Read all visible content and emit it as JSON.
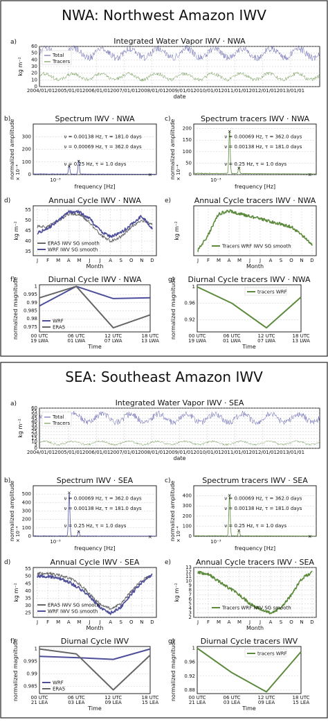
{
  "colors": {
    "total": "#5252a6",
    "tracers": "#5c8a3c",
    "era5": "#666666",
    "wrf": "#4d4d9a",
    "grid": "#bbbbbb"
  },
  "sections": [
    {
      "title": "NWA: Northwest Amazon IWV",
      "panels": {
        "a": {
          "letter": "a)",
          "title": "Integrated Water Vapor IWV · NWA",
          "ylabel": "kg m⁻²",
          "xlabel": "date",
          "yticks": [
            "0",
            "10",
            "20",
            "30",
            "40",
            "50",
            "60"
          ],
          "xticks": [
            "2004/01/01",
            "2005/01/01",
            "2006/01/01",
            "2007/01/01",
            "2008/01/01",
            "2009/01/01",
            "2010/01/01",
            "2011/01/01",
            "2012/01/01",
            "2013/01/01"
          ],
          "legend": [
            "Total",
            "Tracers"
          ]
        },
        "b": {
          "letter": "b)",
          "title": "Spectrum IWV · NWA",
          "ylabel": "normalized amplitude",
          "xlabel": "frequency [Hz]",
          "yticks": [
            "0",
            "100",
            "200",
            "300"
          ],
          "yexp": "× 10⁻⁴",
          "xticks": [
            "10⁻³"
          ],
          "annotations": [
            "ν = 0.00138 Hz, τ = 181.0 days",
            "ν = 0.00069 Hz, τ = 362.0 days",
            "ν = 0.25 Hz, τ = 1.0 days"
          ]
        },
        "c": {
          "letter": "c)",
          "title": "Spectrum tracers IWV · NWA",
          "ylabel": "normalized amplitude",
          "xlabel": "frequency [Hz]",
          "yticks": [
            "0",
            "50",
            "100",
            "150",
            "200"
          ],
          "yexp": "× 10⁻⁴",
          "xticks": [
            "10⁻³"
          ],
          "annotations": [
            "ν = 0.00069 Hz, τ = 362.0 days",
            "ν = 0.00138 Hz, τ = 181.0 days",
            "ν = 0.25 Hz, τ = 1.0 days"
          ]
        },
        "d": {
          "letter": "d)",
          "title": "Annual Cycle IWV · NWA",
          "ylabel": "kg m⁻²",
          "xlabel": "Month",
          "yticks": [
            "35",
            "40",
            "45",
            "50",
            "55"
          ],
          "months": [
            "J",
            "F",
            "M",
            "A",
            "M",
            "J",
            "J",
            "A",
            "S",
            "O",
            "N",
            "D"
          ],
          "legend": [
            "ERA5 IWV SG smooth",
            "WRF IWV SG smooth"
          ]
        },
        "e": {
          "letter": "e)",
          "title": "Annual Cycle tracers IWV · NWA",
          "ylabel": "kg m⁻²",
          "xlabel": "Month",
          "yticks": [],
          "months": [
            "J",
            "F",
            "M",
            "A",
            "M",
            "J",
            "J",
            "A",
            "S",
            "O",
            "N",
            "D"
          ],
          "legend": [
            "Tracers WRF IWV SG smooth"
          ]
        },
        "f": {
          "letter": "f)",
          "title": "Diurnal Cycle IWV · NWA",
          "ylabel": "normalized magnitude",
          "xlabel": "Time",
          "yticks": [
            "0.975",
            "0.98",
            "0.985",
            "0.99",
            "0.995",
            "1"
          ],
          "xticks": [
            [
              "00 UTC",
              "19 LWA"
            ],
            [
              "06 UTC",
              "01 LWA"
            ],
            [
              "12 UTC",
              "07 LWA"
            ],
            [
              "18 UTC",
              "13 LWA"
            ]
          ],
          "legend": [
            "WRF",
            "ERA5"
          ]
        },
        "g": {
          "letter": "g)",
          "title": "Diurnal Cycle tracers IWV · NWA",
          "ylabel": "normalized magnitude",
          "xlabel": "Time",
          "yticks": [
            "0.92",
            "0.96",
            "1"
          ],
          "xticks": [
            [
              "00 UTC",
              "19 LWA"
            ],
            [
              "06 UTC",
              "01 LWA"
            ],
            [
              "12 UTC",
              "07 LWA"
            ],
            [
              "18 UTC",
              "13 LWA"
            ]
          ],
          "legend": [
            "tracers WRF"
          ]
        }
      }
    },
    {
      "title": "SEA: Southeast Amazon IWV",
      "panels": {
        "a": {
          "letter": "a)",
          "title": "Integrated Water Vapor IWV · SEA",
          "ylabel": "kg m⁻²",
          "xlabel": "date",
          "yticks": [
            "0",
            "5",
            "10",
            "15",
            "20",
            "25",
            "30",
            "35",
            "40",
            "45",
            "50",
            "55",
            "60"
          ],
          "xticks": [
            "2004/01/01",
            "2005/01/01",
            "2006/01/01",
            "2007/01/01",
            "2008/01/01",
            "2009/01/01",
            "2010/01/01",
            "2011/01/01",
            "2012/01/01",
            "2013/01/01"
          ],
          "legend": [
            "Total",
            "Tracers"
          ]
        },
        "b": {
          "letter": "b)",
          "title": "Spectrum IWV · SEA",
          "ylabel": "normalized amplitude",
          "xlabel": "frequency [Hz]",
          "yticks": [
            "0",
            "100",
            "200",
            "300",
            "400",
            "500"
          ],
          "yexp": "× 10⁻⁴",
          "xticks": [
            "10⁻³"
          ],
          "annotations": [
            "ν = 0.00069 Hz, τ = 362.0 days",
            "ν = 0.00138 Hz, τ = 181.0 days",
            "ν = 0.25 Hz, τ = 1.0 days"
          ]
        },
        "c": {
          "letter": "c)",
          "title": "Spectrum tracers IWV · SEA",
          "ylabel": "normalized amplitude",
          "xlabel": "frequency [Hz]",
          "yticks": [
            "0",
            "100",
            "200",
            "300",
            "400"
          ],
          "yexp": "× 10⁻⁴",
          "xticks": [
            "10⁻³"
          ],
          "annotations": [
            "ν = 0.00069 Hz, τ = 362.0 days",
            "ν = 0.00138 Hz, τ = 181.0 days",
            "ν = 0.25 Hz, τ = 1.0 days"
          ]
        },
        "d": {
          "letter": "d)",
          "title": "Annual Cycle IWV · SEA",
          "ylabel": "kg m⁻²",
          "xlabel": "Month",
          "yticks": [
            "25",
            "30",
            "35",
            "40",
            "45",
            "50",
            "55"
          ],
          "months": [
            "J",
            "F",
            "M",
            "A",
            "M",
            "J",
            "J",
            "A",
            "S",
            "O",
            "N",
            "D"
          ],
          "legend": [
            "ERA5 IWV SG smooth",
            "WRF IWV SG smooth"
          ]
        },
        "e": {
          "letter": "e)",
          "title": "Annual Cycle tracers IWV · SEA",
          "ylabel": "kg m⁻²",
          "xlabel": "Month",
          "yticks": [
            "2",
            "3",
            "4",
            "5",
            "6",
            "7",
            "8",
            "9",
            "10",
            "11",
            "12",
            "13"
          ],
          "months": [
            "J",
            "F",
            "M",
            "A",
            "M",
            "J",
            "J",
            "A",
            "S",
            "O",
            "N",
            "D"
          ],
          "legend": [
            "Tracers WRF IWV SG smooth"
          ]
        },
        "f": {
          "letter": "f)",
          "title": "Diurnal Cycle IWV",
          "ylabel": "normalized magnitude",
          "xlabel": "Time",
          "yticks": [
            "0.985",
            "0.99",
            "0.995",
            "1"
          ],
          "xticks": [
            [
              "00 UTC",
              "21 LEA"
            ],
            [
              "06 UTC",
              "03 LEA"
            ],
            [
              "12 UTC",
              "09 LEA"
            ],
            [
              "18 UTC",
              "15 LEA"
            ]
          ],
          "legend": [
            "WRF",
            "ERA5"
          ]
        },
        "g": {
          "letter": "g)",
          "title": "Diurnal Cycle tracers IWV",
          "ylabel": "normalized magnitude",
          "xlabel": "Time",
          "yticks": [
            "0.88",
            "0.92",
            "0.96",
            "1"
          ],
          "xticks": [
            [
              "00 UTC",
              "21 LEA"
            ],
            [
              "06 UTC",
              "03 LEA"
            ],
            [
              "12 UTC",
              "09 LEA"
            ],
            [
              "18 UTC",
              "15 LEA"
            ]
          ],
          "legend": [
            "tracers WRF"
          ]
        }
      }
    }
  ],
  "chart_data": [
    {
      "type": "line",
      "title": "Integrated Water Vapor IWV · NWA",
      "xlabel": "date",
      "ylabel": "kg m⁻²",
      "ylim": [
        0,
        60
      ],
      "x": [
        "2004",
        "2005",
        "2006",
        "2007",
        "2008",
        "2009",
        "2010",
        "2011",
        "2012",
        "2013",
        "2014"
      ],
      "series": [
        {
          "name": "Total",
          "values": [
            50,
            50,
            50,
            50,
            50,
            50,
            50,
            50,
            50,
            50,
            50
          ]
        },
        {
          "name": "Tracers",
          "values": [
            15,
            15,
            15,
            15,
            15,
            15,
            15,
            15,
            15,
            15,
            15
          ]
        }
      ]
    },
    {
      "type": "line",
      "title": "Spectrum IWV · NWA",
      "xlabel": "frequency [Hz]",
      "ylabel": "normalized amplitude",
      "ylim": [
        0,
        400
      ],
      "peaks": [
        {
          "freq": 0.00069,
          "period_days": 362.0,
          "amp": 70
        },
        {
          "freq": 0.00138,
          "period_days": 181.0,
          "amp": 110
        },
        {
          "freq": 0.25,
          "period_days": 1.0,
          "amp": 2
        }
      ]
    },
    {
      "type": "line",
      "title": "Spectrum tracers IWV · NWA",
      "xlabel": "frequency [Hz]",
      "ylabel": "normalized amplitude",
      "ylim": [
        0,
        220
      ],
      "peaks": [
        {
          "freq": 0.00069,
          "period_days": 362.0,
          "amp": 190
        },
        {
          "freq": 0.00138,
          "period_days": 181.0,
          "amp": 30
        },
        {
          "freq": 0.25,
          "period_days": 1.0,
          "amp": 2
        }
      ]
    },
    {
      "type": "line",
      "title": "Annual Cycle IWV · NWA",
      "xlabel": "Month",
      "ylabel": "kg m⁻²",
      "ylim": [
        33,
        57
      ],
      "categories": [
        "J",
        "F",
        "M",
        "A",
        "M",
        "J",
        "J",
        "A",
        "S",
        "O",
        "N",
        "D"
      ],
      "series": [
        {
          "name": "ERA5 IWV SG smooth",
          "values": [
            47,
            47,
            50,
            53,
            53,
            49,
            43,
            40,
            42,
            47,
            50,
            48
          ]
        },
        {
          "name": "WRF IWV SG smooth",
          "values": [
            44,
            46,
            50,
            54,
            54,
            51,
            45,
            42,
            44,
            48,
            52,
            46
          ]
        }
      ]
    },
    {
      "type": "line",
      "title": "Annual Cycle tracers IWV · NWA",
      "xlabel": "Month",
      "ylabel": "kg m⁻²",
      "categories": [
        "J",
        "F",
        "M",
        "A",
        "M",
        "J",
        "J",
        "A",
        "S",
        "O",
        "N",
        "D"
      ],
      "series": [
        {
          "name": "Tracers WRF IWV SG smooth",
          "values": [
            2,
            5,
            9,
            9.5,
            9,
            8.5,
            8,
            7.5,
            7,
            6.5,
            5,
            3
          ]
        }
      ]
    },
    {
      "type": "line",
      "title": "Diurnal Cycle IWV · NWA",
      "xlabel": "Time",
      "ylabel": "normalized magnitude",
      "ylim": [
        0.972,
        1.001
      ],
      "categories": [
        "00 UTC 19 LWA",
        "06 UTC 01 LWA",
        "12 UTC 07 LWA",
        "18 UTC 13 LWA"
      ],
      "series": [
        {
          "name": "WRF",
          "values": [
            0.988,
            1.0,
            0.9925,
            0.993
          ]
        },
        {
          "name": "ERA5",
          "values": [
            0.993,
            1.0,
            0.9745,
            0.9825
          ]
        }
      ]
    },
    {
      "type": "line",
      "title": "Diurnal Cycle tracers IWV · NWA",
      "xlabel": "Time",
      "ylabel": "normalized magnitude",
      "ylim": [
        0.89,
        1.005
      ],
      "categories": [
        "00 UTC 19 LWA",
        "06 UTC 01 LWA",
        "12 UTC 07 LWA",
        "18 UTC 13 LWA"
      ],
      "series": [
        {
          "name": "tracers WRF",
          "values": [
            1.0,
            0.96,
            0.9,
            0.975
          ]
        }
      ]
    },
    {
      "type": "line",
      "title": "Integrated Water Vapor IWV · SEA",
      "xlabel": "date",
      "ylabel": "kg m⁻²",
      "ylim": [
        0,
        60
      ],
      "x": [
        "2004",
        "2005",
        "2006",
        "2007",
        "2008",
        "2009",
        "2010",
        "2011",
        "2012",
        "2013",
        "2014"
      ],
      "series": [
        {
          "name": "Total",
          "values": [
            45,
            45,
            45,
            45,
            45,
            45,
            45,
            45,
            45,
            45,
            45
          ]
        },
        {
          "name": "Tracers",
          "values": [
            8,
            8,
            8,
            8,
            8,
            8,
            8,
            8,
            8,
            8,
            8
          ]
        }
      ]
    },
    {
      "type": "line",
      "title": "Spectrum IWV · SEA",
      "xlabel": "frequency [Hz]",
      "ylabel": "normalized amplitude",
      "ylim": [
        0,
        600
      ],
      "peaks": [
        {
          "freq": 0.00069,
          "period_days": 362.0,
          "amp": 520
        },
        {
          "freq": 0.00138,
          "period_days": 181.0,
          "amp": 60
        },
        {
          "freq": 0.25,
          "period_days": 1.0,
          "amp": 2
        }
      ]
    },
    {
      "type": "line",
      "title": "Spectrum tracers IWV · SEA",
      "xlabel": "frequency [Hz]",
      "ylabel": "normalized amplitude",
      "ylim": [
        0,
        500
      ],
      "peaks": [
        {
          "freq": 0.00069,
          "period_days": 362.0,
          "amp": 410
        },
        {
          "freq": 0.00138,
          "period_days": 181.0,
          "amp": 60
        },
        {
          "freq": 0.25,
          "period_days": 1.0,
          "amp": 2
        }
      ]
    },
    {
      "type": "line",
      "title": "Annual Cycle IWV · SEA",
      "xlabel": "Month",
      "ylabel": "kg m⁻²",
      "ylim": [
        22,
        56
      ],
      "categories": [
        "J",
        "F",
        "M",
        "A",
        "M",
        "J",
        "J",
        "A",
        "S",
        "O",
        "N",
        "D"
      ],
      "series": [
        {
          "name": "ERA5 IWV SG smooth",
          "values": [
            52,
            52,
            51,
            49,
            45,
            38,
            31,
            28,
            31,
            40,
            47,
            51
          ]
        },
        {
          "name": "WRF IWV SG smooth",
          "values": [
            50,
            50,
            49,
            46,
            42,
            36,
            29,
            25,
            29,
            38,
            46,
            51
          ]
        }
      ]
    },
    {
      "type": "line",
      "title": "Annual Cycle tracers IWV · SEA",
      "xlabel": "Month",
      "ylabel": "kg m⁻²",
      "ylim": [
        2,
        13
      ],
      "categories": [
        "J",
        "F",
        "M",
        "A",
        "M",
        "J",
        "J",
        "A",
        "S",
        "O",
        "N",
        "D"
      ],
      "series": [
        {
          "name": "Tracers WRF IWV SG smooth",
          "values": [
            12,
            11.5,
            10,
            8.5,
            7,
            5,
            3.8,
            3,
            4,
            7,
            10.5,
            12
          ]
        }
      ]
    },
    {
      "type": "line",
      "title": "Diurnal Cycle IWV",
      "xlabel": "Time",
      "ylabel": "normalized magnitude",
      "ylim": [
        0.982,
        1.001
      ],
      "categories": [
        "00 UTC 21 LEA",
        "06 UTC 03 LEA",
        "12 UTC 09 LEA",
        "18 UTC 15 LEA"
      ],
      "series": [
        {
          "name": "WRF",
          "values": [
            0.997,
            0.9965,
            0.9958,
            1.0
          ]
        },
        {
          "name": "ERA5",
          "values": [
            1.0,
            0.998,
            0.9835,
            0.9975
          ]
        }
      ]
    },
    {
      "type": "line",
      "title": "Diurnal Cycle tracers IWV",
      "xlabel": "Time",
      "ylabel": "normalized magnitude",
      "ylim": [
        0.87,
        1.005
      ],
      "categories": [
        "00 UTC 21 LEA",
        "06 UTC 03 LEA",
        "12 UTC 09 LEA",
        "18 UTC 15 LEA"
      ],
      "series": [
        {
          "name": "tracers WRF",
          "values": [
            1.0,
            0.93,
            0.875,
            0.99
          ]
        }
      ]
    }
  ]
}
